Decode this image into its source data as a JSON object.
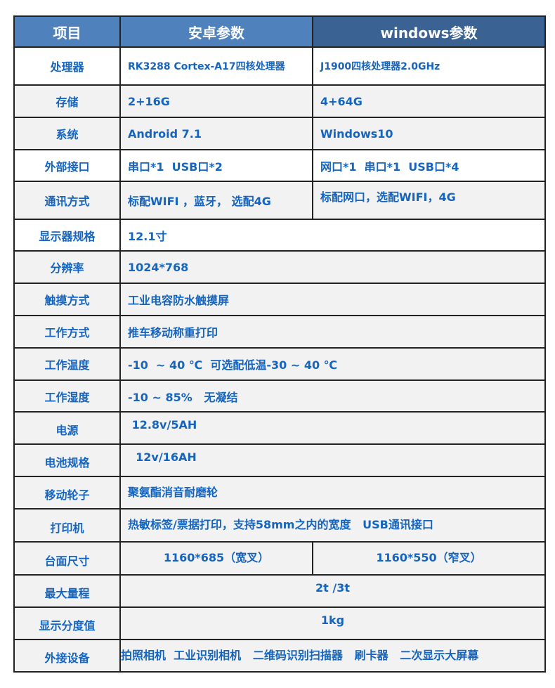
{
  "header": {
    "item": "项目",
    "android": "安卓参数",
    "windows": "windows参数"
  },
  "colors": {
    "header_android": "#4f81bd",
    "header_windows": "#3a6293",
    "text": "#1565c0",
    "row_gray": "#f2f2f2"
  },
  "rows": [
    {
      "label": "处理器",
      "android": "RK3288 Cortex-A17四核处理器",
      "windows": "J1900四核处理器2.0GHz"
    },
    {
      "label": "存储",
      "android": "2+16G",
      "windows": "4+64G"
    },
    {
      "label": "系统",
      "android": "Android 7.1",
      "windows": "Windows10"
    },
    {
      "label": "外部接口",
      "android": "串口*1  USB口*2",
      "windows": "网口*1  串口*1  USB口*4"
    },
    {
      "label": "通讯方式",
      "android": "标配WIFI ，蓝牙， 选配4G",
      "windows": "标配网口，选配WIFI，4G"
    },
    {
      "label": "显示器规格",
      "value": "12.1寸"
    },
    {
      "label": "分辨率",
      "value": "1024*768"
    },
    {
      "label": "触摸方式",
      "value": "工业电容防水触摸屏"
    },
    {
      "label": "工作方式",
      "value": "推车移动称重打印"
    },
    {
      "label": "工作温度",
      "value": "-10  ~ 40 ℃  可选配低温-30 ~ 40 ℃"
    },
    {
      "label": "工作湿度",
      "value": "-10 ~ 85%   无凝结"
    },
    {
      "label": "电源",
      "value": " 12.8v/5AH"
    },
    {
      "label": "电池规格",
      "value": "  12v/16AH"
    },
    {
      "label": "移动轮子",
      "value": "聚氨酯消音耐磨轮"
    },
    {
      "label": "打印机",
      "value": "热敏标签/票据打印，支持58mm之内的宽度   USB通讯接口"
    },
    {
      "label": "台面尺寸",
      "android": "1160*685（宽叉）",
      "windows": "1160*550（窄叉）"
    },
    {
      "label": "最大量程",
      "value": "2t /3t"
    },
    {
      "label": "显示分度值",
      "value": "1kg"
    },
    {
      "label": "外接设备",
      "value": "拍照相机  工业识别相机   二维码识别扫描器   刷卡器   二次显示大屏幕"
    }
  ]
}
